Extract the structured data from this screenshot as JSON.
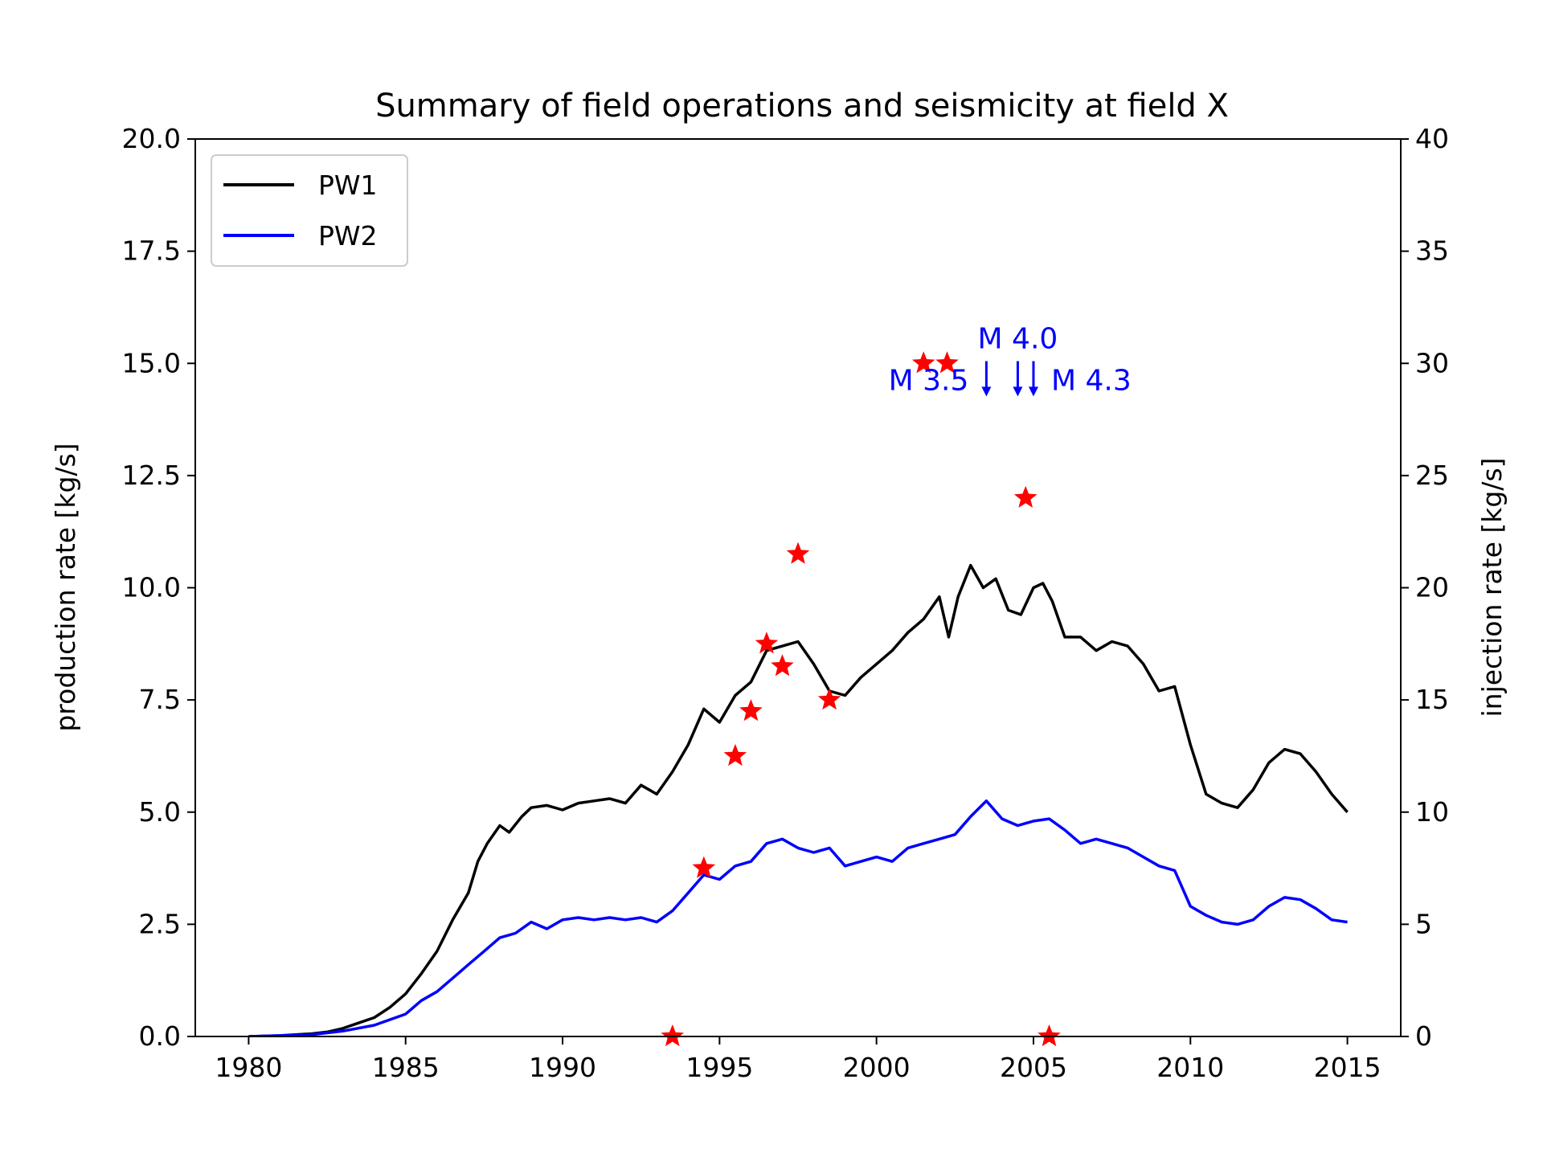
{
  "chart_data": {
    "type": "line",
    "title": "Summary of field operations and seismicity at field X",
    "xlabel": "",
    "ylabel": "production rate [kg/s]",
    "y2label": "injection rate [kg/s]",
    "xlim": [
      1978.3,
      2016.7
    ],
    "ylim": [
      0,
      20
    ],
    "y2lim": [
      0,
      40
    ],
    "x_ticks": [
      "1980",
      "1985",
      "1990",
      "1995",
      "2000",
      "2005",
      "2010",
      "2015"
    ],
    "x_tick_values": [
      1980,
      1985,
      1990,
      1995,
      2000,
      2005,
      2010,
      2015
    ],
    "y_ticks": [
      "0.0",
      "2.5",
      "5.0",
      "7.5",
      "10.0",
      "12.5",
      "15.0",
      "17.5",
      "20.0"
    ],
    "y_tick_values": [
      0,
      2.5,
      5,
      7.5,
      10,
      12.5,
      15,
      17.5,
      20
    ],
    "y2_ticks": [
      "0",
      "5",
      "10",
      "15",
      "20",
      "25",
      "30",
      "35",
      "40"
    ],
    "y2_tick_values": [
      0,
      5,
      10,
      15,
      20,
      25,
      30,
      35,
      40
    ],
    "grid": false,
    "legend_position": "top-left",
    "series": [
      {
        "name": "PW1",
        "color": "#000000",
        "points": [
          [
            1980,
            0
          ],
          [
            1981,
            0.02
          ],
          [
            1982,
            0.06
          ],
          [
            1982.5,
            0.1
          ],
          [
            1983,
            0.18
          ],
          [
            1983.5,
            0.3
          ],
          [
            1984,
            0.42
          ],
          [
            1984.5,
            0.65
          ],
          [
            1985,
            0.95
          ],
          [
            1985.5,
            1.4
          ],
          [
            1986,
            1.9
          ],
          [
            1986.5,
            2.6
          ],
          [
            1987,
            3.2
          ],
          [
            1987.3,
            3.9
          ],
          [
            1987.6,
            4.3
          ],
          [
            1988,
            4.7
          ],
          [
            1988.3,
            4.55
          ],
          [
            1988.7,
            4.9
          ],
          [
            1989,
            5.1
          ],
          [
            1989.5,
            5.15
          ],
          [
            1990,
            5.05
          ],
          [
            1990.5,
            5.2
          ],
          [
            1991,
            5.25
          ],
          [
            1991.5,
            5.3
          ],
          [
            1992,
            5.2
          ],
          [
            1992.5,
            5.6
          ],
          [
            1993,
            5.4
          ],
          [
            1993.5,
            5.9
          ],
          [
            1994,
            6.5
          ],
          [
            1994.5,
            7.3
          ],
          [
            1995,
            7.0
          ],
          [
            1995.5,
            7.6
          ],
          [
            1996,
            7.9
          ],
          [
            1996.5,
            8.6
          ],
          [
            1997,
            8.7
          ],
          [
            1997.5,
            8.8
          ],
          [
            1998,
            8.3
          ],
          [
            1998.5,
            7.7
          ],
          [
            1999,
            7.6
          ],
          [
            1999.5,
            8.0
          ],
          [
            2000,
            8.3
          ],
          [
            2000.5,
            8.6
          ],
          [
            2001,
            9.0
          ],
          [
            2001.5,
            9.3
          ],
          [
            2002,
            9.8
          ],
          [
            2002.3,
            8.9
          ],
          [
            2002.6,
            9.8
          ],
          [
            2003,
            10.5
          ],
          [
            2003.4,
            10.0
          ],
          [
            2003.8,
            10.2
          ],
          [
            2004.2,
            9.5
          ],
          [
            2004.6,
            9.4
          ],
          [
            2005,
            10.0
          ],
          [
            2005.3,
            10.1
          ],
          [
            2005.6,
            9.7
          ],
          [
            2006,
            8.9
          ],
          [
            2006.5,
            8.9
          ],
          [
            2007,
            8.6
          ],
          [
            2007.5,
            8.8
          ],
          [
            2008,
            8.7
          ],
          [
            2008.5,
            8.3
          ],
          [
            2009,
            7.7
          ],
          [
            2009.5,
            7.8
          ],
          [
            2010,
            6.5
          ],
          [
            2010.5,
            5.4
          ],
          [
            2011,
            5.2
          ],
          [
            2011.5,
            5.1
          ],
          [
            2012,
            5.5
          ],
          [
            2012.5,
            6.1
          ],
          [
            2013,
            6.4
          ],
          [
            2013.5,
            6.3
          ],
          [
            2014,
            5.9
          ],
          [
            2014.5,
            5.4
          ],
          [
            2015,
            5.0
          ]
        ]
      },
      {
        "name": "PW2",
        "color": "#0000ff",
        "points": [
          [
            1980,
            0
          ],
          [
            1981,
            0.02
          ],
          [
            1982,
            0.04
          ],
          [
            1983,
            0.12
          ],
          [
            1984,
            0.25
          ],
          [
            1985,
            0.5
          ],
          [
            1985.5,
            0.8
          ],
          [
            1986,
            1.0
          ],
          [
            1986.5,
            1.3
          ],
          [
            1987,
            1.6
          ],
          [
            1987.5,
            1.9
          ],
          [
            1988,
            2.2
          ],
          [
            1988.5,
            2.3
          ],
          [
            1989,
            2.55
          ],
          [
            1989.5,
            2.4
          ],
          [
            1990,
            2.6
          ],
          [
            1990.5,
            2.65
          ],
          [
            1991,
            2.6
          ],
          [
            1991.5,
            2.65
          ],
          [
            1992,
            2.6
          ],
          [
            1992.5,
            2.65
          ],
          [
            1993,
            2.55
          ],
          [
            1993.5,
            2.8
          ],
          [
            1994,
            3.2
          ],
          [
            1994.5,
            3.6
          ],
          [
            1995,
            3.5
          ],
          [
            1995.5,
            3.8
          ],
          [
            1996,
            3.9
          ],
          [
            1996.5,
            4.3
          ],
          [
            1997,
            4.4
          ],
          [
            1997.5,
            4.2
          ],
          [
            1998,
            4.1
          ],
          [
            1998.5,
            4.2
          ],
          [
            1999,
            3.8
          ],
          [
            1999.5,
            3.9
          ],
          [
            2000,
            4.0
          ],
          [
            2000.5,
            3.9
          ],
          [
            2001,
            4.2
          ],
          [
            2001.5,
            4.3
          ],
          [
            2002,
            4.4
          ],
          [
            2002.5,
            4.5
          ],
          [
            2003,
            4.9
          ],
          [
            2003.5,
            5.25
          ],
          [
            2004,
            4.85
          ],
          [
            2004.5,
            4.7
          ],
          [
            2005,
            4.8
          ],
          [
            2005.5,
            4.85
          ],
          [
            2006,
            4.6
          ],
          [
            2006.5,
            4.3
          ],
          [
            2007,
            4.4
          ],
          [
            2007.5,
            4.3
          ],
          [
            2008,
            4.2
          ],
          [
            2008.5,
            4.0
          ],
          [
            2009,
            3.8
          ],
          [
            2009.5,
            3.7
          ],
          [
            2010,
            2.9
          ],
          [
            2010.5,
            2.7
          ],
          [
            2011,
            2.55
          ],
          [
            2011.5,
            2.5
          ],
          [
            2012,
            2.6
          ],
          [
            2012.5,
            2.9
          ],
          [
            2013,
            3.1
          ],
          [
            2013.5,
            3.05
          ],
          [
            2014,
            2.85
          ],
          [
            2014.5,
            2.6
          ],
          [
            2015,
            2.55
          ]
        ]
      }
    ],
    "events": {
      "color": "#ff0000",
      "points": [
        [
          1993.5,
          0.0
        ],
        [
          1994.5,
          3.75
        ],
        [
          1995.5,
          6.25
        ],
        [
          1996.0,
          7.25
        ],
        [
          1996.5,
          8.75
        ],
        [
          1997.0,
          8.25
        ],
        [
          1997.5,
          10.75
        ],
        [
          1998.5,
          7.5
        ],
        [
          2001.5,
          15.0
        ],
        [
          2002.25,
          15.0
        ],
        [
          2004.75,
          12.0
        ],
        [
          2005.5,
          0.0
        ]
      ]
    },
    "annotations": [
      {
        "text": "M 3.5",
        "x": 2003.5,
        "y_tip": 14.3,
        "y_tail": 15.05,
        "color": "#0000ff",
        "anchor": "end"
      },
      {
        "text": "M 4.0",
        "x": 2004.5,
        "y_tip": 14.3,
        "y_tail": 15.05,
        "color": "#0000ff",
        "anchor": "middle-above"
      },
      {
        "text": "M 4.3",
        "x": 2005.0,
        "y_tip": 14.3,
        "y_tail": 15.05,
        "color": "#0000ff",
        "anchor": "start"
      }
    ]
  }
}
